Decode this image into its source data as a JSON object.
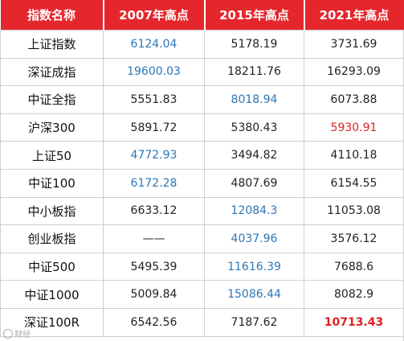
{
  "table": {
    "headers": [
      "指数名称",
      "2007年高点",
      "2015年高点",
      "2021年高点"
    ],
    "rows": [
      {
        "name": "上证指数",
        "v2007": "6124.04",
        "v2015": "5178.19",
        "v2021": "3731.69",
        "hl": [
          1
        ]
      },
      {
        "name": "深证成指",
        "v2007": "19600.03",
        "v2015": "18211.76",
        "v2021": "16293.09",
        "hl": [
          1
        ]
      },
      {
        "name": "中证全指",
        "v2007": "5551.83",
        "v2015": "8018.94",
        "v2021": "6073.88",
        "hl": [
          2
        ]
      },
      {
        "name": "沪深300",
        "v2007": "5891.72",
        "v2015": "5380.43",
        "v2021": "5930.91",
        "hl": [
          3
        ],
        "hl_style": "red"
      },
      {
        "name": "上证50",
        "v2007": "4772.93",
        "v2015": "3494.82",
        "v2021": "4110.18",
        "hl": [
          1
        ]
      },
      {
        "name": "中证100",
        "v2007": "6172.28",
        "v2015": "4807.69",
        "v2021": "6154.55",
        "hl": [
          1
        ]
      },
      {
        "name": "中小板指",
        "v2007": "6633.12",
        "v2015": "12084.3",
        "v2021": "11053.08",
        "hl": [
          2
        ]
      },
      {
        "name": "创业板指",
        "v2007": "——",
        "v2015": "4037.96",
        "v2021": "3576.12",
        "hl": [
          2
        ]
      },
      {
        "name": "中证500",
        "v2007": "5495.39",
        "v2015": "11616.39",
        "v2021": "7688.6",
        "hl": [
          2
        ]
      },
      {
        "name": "中证1000",
        "v2007": "5009.84",
        "v2015": "15086.44",
        "v2021": "8082.9",
        "hl": [
          2
        ]
      },
      {
        "name": "深证100R",
        "v2007": "6542.56",
        "v2015": "7187.62",
        "v2021": "10713.43",
        "hl": [
          3
        ],
        "hl_style": "red-bold"
      }
    ]
  },
  "colors": {
    "header_bg": "#e5272d",
    "header_text": "#ffffff",
    "highlight_blue": "#2e75b6",
    "highlight_red": "#e02020",
    "grid_line": "#cfcfcf"
  },
  "watermark": {
    "text": "财经",
    "icon": "weibo-icon"
  }
}
